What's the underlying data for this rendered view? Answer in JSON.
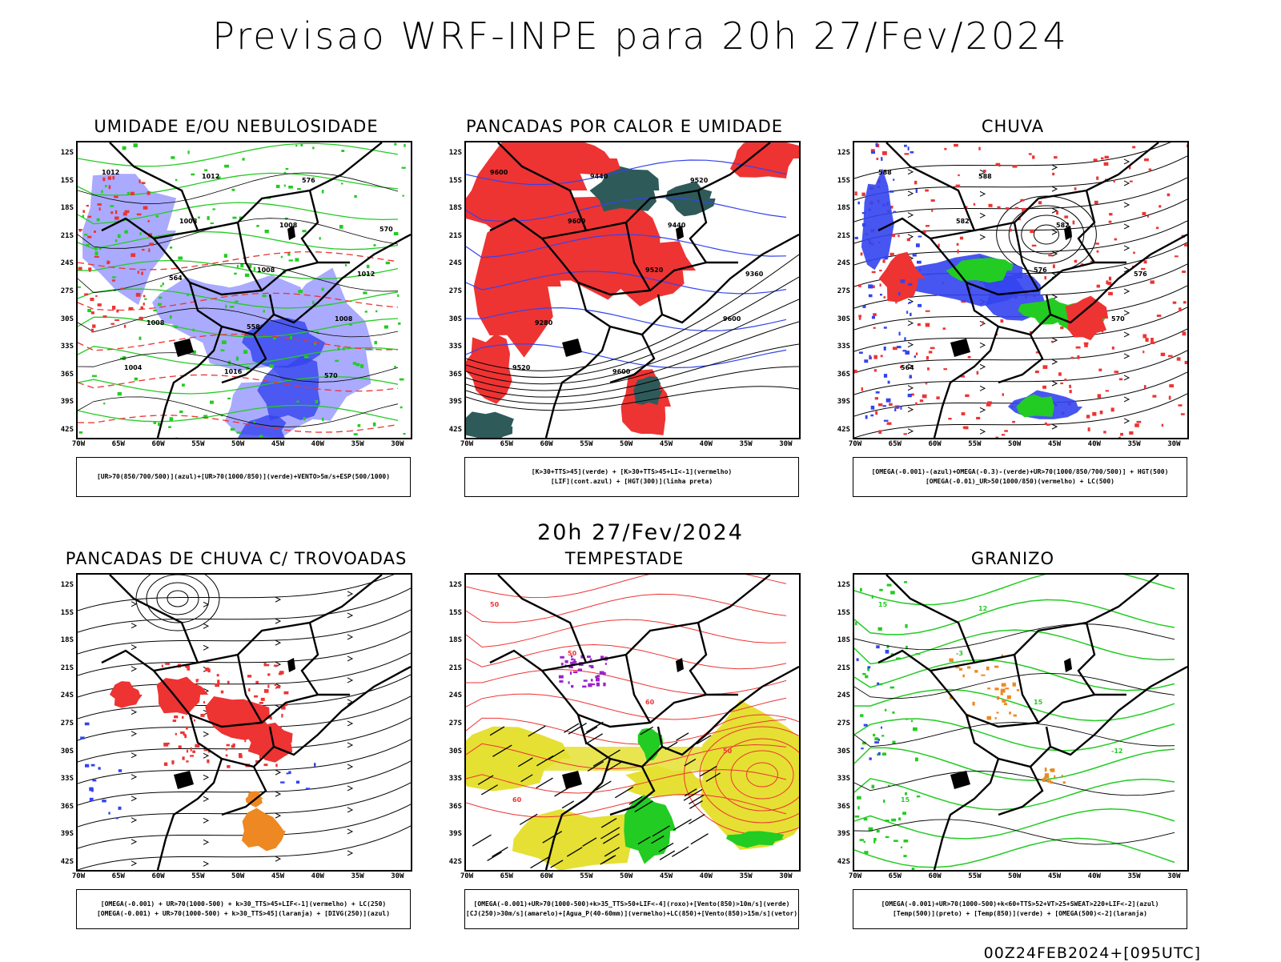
{
  "title": "Previsao WRF-INPE  para 20h 27/Fev/2024",
  "mid_date": "20h 27/Fev/2024",
  "footer": "00Z24FEB2024+[095UTC]",
  "axes": {
    "lat_labels": [
      "12S",
      "15S",
      "18S",
      "21S",
      "24S",
      "27S",
      "30S",
      "33S",
      "36S",
      "39S",
      "42S"
    ],
    "lon_labels": [
      "70W",
      "65W",
      "60W",
      "55W",
      "50W",
      "45W",
      "40W",
      "35W",
      "30W"
    ]
  },
  "colors": {
    "blue": "#3344ee",
    "lavender": "#aaaaff",
    "green": "#22cc22",
    "red": "#ee3333",
    "darkteal": "#2f5a5a",
    "yellow": "#e5e033",
    "orange": "#ee8822",
    "purple": "#9922cc"
  },
  "panels": [
    {
      "title": "UMIDADE E/OU NEBULOSIDADE",
      "legend": [
        "[UR>70(850/700/500)](azul)+[UR>70(1000/850)](verde)+VENTO>5m/s+ESP(500/1000)"
      ],
      "contour_labels": [
        "1012",
        "1008",
        "1008",
        "1008",
        "1004",
        "1012",
        "1008",
        "1012",
        "1008",
        "1016",
        "576",
        "570",
        "564",
        "558",
        "570"
      ]
    },
    {
      "title": "PANCADAS POR CALOR E UMIDADE",
      "legend": [
        "[K>30+TTS>45](verde) + [K>30+TTS>45+LI<-1](vermelho)",
        "[LIF](cont.azul) + [HGT(300)](linha preta)"
      ],
      "contour_labels": [
        "9600",
        "9600",
        "9520",
        "9600",
        "9520",
        "9440",
        "9440",
        "9360",
        "9280",
        "9600",
        "9520"
      ]
    },
    {
      "title": "CHUVA",
      "legend": [
        "[OMEGA(-0.001)-(azul)+OMEGA(-0.3)-(verde)+UR>70(1000/850/700/500)] + HGT(500)",
        "[OMEGA(-0.01)_UR>50(1000/850)(vermelho) + LC(500)"
      ],
      "contour_labels": [
        "588",
        "582",
        "576",
        "570",
        "564",
        "588",
        "582",
        "576"
      ]
    },
    {
      "title": "PANCADAS DE CHUVA C/ TROVOADAS",
      "legend": [
        "[OMEGA(-0.001) + UR>70(1000-500) + k>30_TTS>45+LIF<-1](vermelho) + LC(250)",
        "[OMEGA(-0.001) + UR>70(1000-500) + k>30_TTS>45](laranja) + [DIVG(250)](azul)"
      ],
      "contour_labels": []
    },
    {
      "title": "TEMPESTADE",
      "legend": [
        "[OMEGA(-0.001)+UR>70(1000-500)+k>35_TTS>50+LIF<-4](roxo)+[Vento(850)>10m/s](verde)",
        "[CJ(250)>30m/s](amarelo)+[Agua_P(40-60mm)](vermelho)+LC(850)+[Vento(850)>15m/s](vetor)"
      ],
      "contour_labels": [
        "50",
        "50",
        "60",
        "50",
        "60"
      ]
    },
    {
      "title": "GRANIZO",
      "legend": [
        "[OMEGA(-0.001)+UR>70(1000-500)+k<60+TTS>52+VT>25+SWEAT>220+LIF<-2](azul)",
        "[Temp(500)](preto) + [Temp(850)](verde) + [OMEGA(500)<-2](laranja)"
      ],
      "contour_labels": [
        "15",
        "-3",
        "15",
        "-12",
        "15",
        "12"
      ]
    }
  ]
}
